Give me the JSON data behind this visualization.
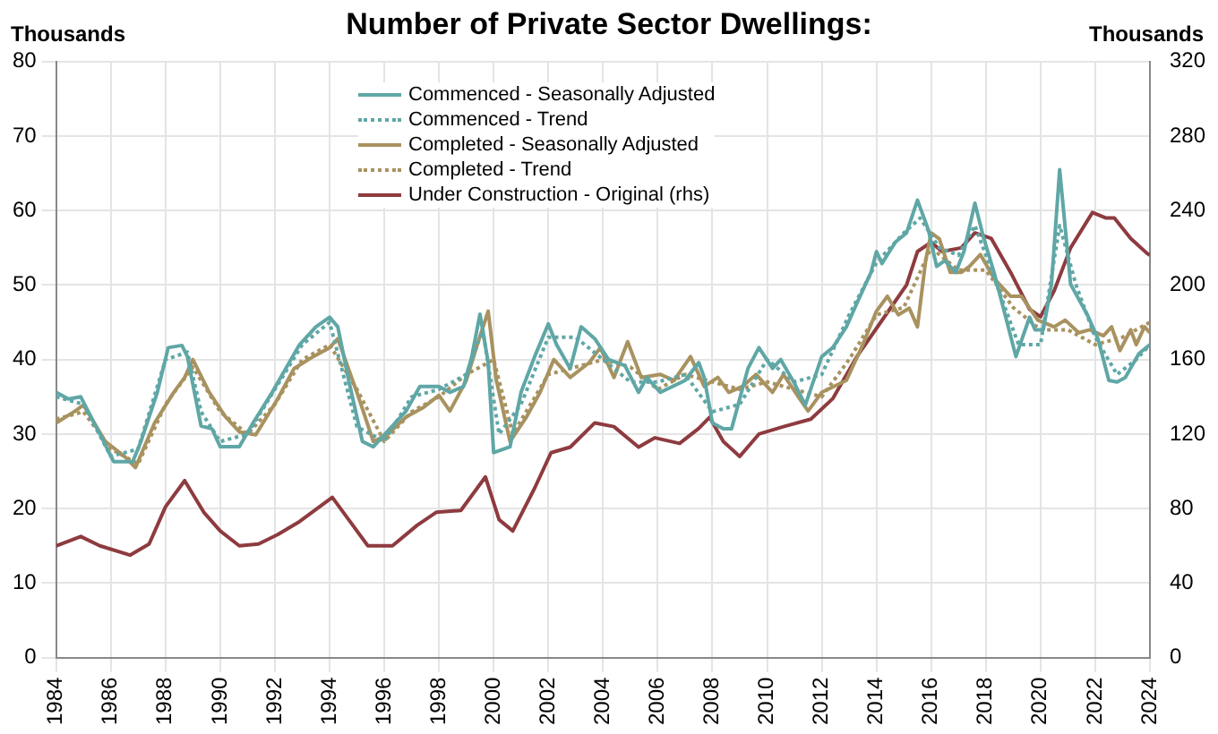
{
  "chart_data": {
    "type": "line",
    "title": "Number of Private Sector Dwellings:",
    "ylabel": "Thousands",
    "y2label": "Thousands",
    "xlim": [
      1984,
      2024
    ],
    "xticks": [
      1984,
      1986,
      1988,
      1990,
      1992,
      1994,
      1996,
      1998,
      2000,
      2002,
      2004,
      2006,
      2008,
      2010,
      2012,
      2014,
      2016,
      2018,
      2020,
      2022,
      2024
    ],
    "ylim": [
      0,
      80
    ],
    "yticks": [
      0,
      10,
      20,
      30,
      40,
      50,
      60,
      70,
      80
    ],
    "y2lim": [
      0,
      320
    ],
    "y2ticks": [
      0,
      40,
      80,
      120,
      160,
      200,
      240,
      280,
      320
    ],
    "grid": true,
    "legend": "top",
    "marker": "none",
    "series": [
      {
        "name": "Commenced - Seasonally Adjusted",
        "type": "line",
        "color": "#5fa7a6",
        "line_style": "solid",
        "x": [
          1984,
          1984.45,
          1984.9,
          1985.6,
          1986.1,
          1986.8,
          1987.1,
          1987.7,
          1988.1,
          1988.6,
          1988.8,
          1989.3,
          1989.7,
          1990,
          1990.7,
          1991.2,
          1991.9,
          1992.9,
          1993.5,
          1994,
          1994.3,
          1994.7,
          1995.2,
          1995.6,
          1996.2,
          1996.8,
          1997.3,
          1998,
          1998.4,
          1998.9,
          1999.2,
          1999.5,
          1999.8,
          2000,
          2000.6,
          2001,
          2001.5,
          2002,
          2002.3,
          2002.8,
          2003.2,
          2003.7,
          2004.2,
          2004.8,
          2005.3,
          2005.6,
          2006.1,
          2007,
          2007.5,
          2007.7,
          2008,
          2008.4,
          2008.7,
          2009.3,
          2009.7,
          2010.2,
          2010.5,
          2011,
          2011.4,
          2012,
          2012.4,
          2012.9,
          2013.3,
          2013.8,
          2014,
          2014.2,
          2014.7,
          2015.1,
          2015.5,
          2015.9,
          2016.2,
          2016.5,
          2016.9,
          2017.2,
          2017.6,
          2017.9,
          2018.3,
          2018.7,
          2019.1,
          2019.6,
          2019.8,
          2020.1,
          2020.4,
          2020.7,
          2021.1,
          2021.7,
          2022.1,
          2022.5,
          2022.8,
          2023.1,
          2023.6,
          2024
        ],
        "values": [
          35.6,
          34.7,
          35,
          30,
          26.3,
          26.3,
          29,
          35.6,
          41.6,
          41.9,
          40.4,
          31.1,
          30.7,
          28.3,
          28.3,
          31.5,
          35.6,
          42,
          44.4,
          45.7,
          44.4,
          37.2,
          29,
          28.3,
          30.7,
          33.1,
          36.4,
          36.4,
          35.6,
          36.4,
          40.4,
          46.1,
          39.6,
          27.5,
          28.3,
          35.6,
          40.4,
          44.8,
          42,
          38.8,
          44.4,
          42.8,
          40,
          39.2,
          35.6,
          37.6,
          35.6,
          37.2,
          39.6,
          37.6,
          31.5,
          30.7,
          30.7,
          38.8,
          41.6,
          38.8,
          40,
          36.8,
          33.9,
          40.4,
          41.6,
          44.4,
          47.7,
          51.7,
          54.5,
          52.9,
          55.8,
          57,
          61.4,
          57.4,
          52.5,
          53.3,
          51.7,
          54.5,
          61,
          56.6,
          51.7,
          46.1,
          40.4,
          45.7,
          44,
          44,
          50.1,
          65.5,
          50.1,
          46.1,
          42.8,
          37.2,
          37,
          37.6,
          40.8,
          42
        ]
      },
      {
        "name": "Commenced - Trend",
        "type": "line",
        "color": "#5fa7a6",
        "line_style": "dotted",
        "x": [
          1984,
          1985,
          1986,
          1987,
          1988,
          1988.8,
          1989.3,
          1990,
          1991,
          1992,
          1993,
          1994,
          1995,
          1996,
          1997,
          1998,
          1999,
          1999.6,
          2000.2,
          2001,
          2002,
          2003,
          2004,
          2005,
          2006,
          2007,
          2008,
          2009,
          2010,
          2011,
          2012,
          2013,
          2014,
          2015,
          2015.6,
          2016.3,
          2017,
          2017.6,
          2018.5,
          2019.2,
          2020,
          2020.7,
          2021.3,
          2022,
          2022.8,
          2023.5,
          2024
        ],
        "values": [
          35,
          34,
          27,
          28,
          40,
          41,
          33,
          29,
          30,
          36,
          42,
          45,
          31,
          29,
          35,
          36,
          38,
          44,
          30,
          34,
          43,
          43,
          40,
          37,
          37,
          38,
          33,
          34,
          40,
          37,
          38,
          46,
          53,
          57,
          59,
          55,
          54,
          58,
          49,
          42,
          42,
          58,
          50,
          43,
          38,
          40,
          42
        ]
      },
      {
        "name": "Completed - Seasonally Adjusted",
        "type": "line",
        "color": "#a8925f",
        "line_style": "solid",
        "x": [
          1984,
          1984.7,
          1985,
          1985.8,
          1986.5,
          1986.9,
          1987.6,
          1988.3,
          1988.7,
          1989,
          1989.6,
          1990.2,
          1990.7,
          1991.3,
          1992.1,
          1992.7,
          1993.4,
          1994,
          1994.3,
          1995,
          1995.6,
          1996.1,
          1996.8,
          1997.4,
          1998,
          1998.4,
          1999,
          1999.4,
          1999.8,
          2000.1,
          2000.6,
          2001.2,
          2001.7,
          2002.2,
          2002.8,
          2003.5,
          2003.9,
          2004.4,
          2004.9,
          2005.4,
          2006.1,
          2006.6,
          2007.2,
          2007.7,
          2008.2,
          2008.6,
          2009.1,
          2009.6,
          2010.2,
          2010.6,
          2011.2,
          2011.5,
          2012,
          2012.9,
          2013.5,
          2014,
          2014.4,
          2014.8,
          2015.2,
          2015.5,
          2015.8,
          2016,
          2016.3,
          2016.7,
          2017.1,
          2017.4,
          2017.8,
          2018.3,
          2018.9,
          2019.3,
          2019.9,
          2020.5,
          2020.9,
          2021.4,
          2021.8,
          2022.3,
          2022.6,
          2022.9,
          2023.3,
          2023.5,
          2023.8,
          2024
        ],
        "values": [
          31.5,
          33.1,
          33.9,
          29,
          27,
          25.5,
          31.5,
          35.6,
          37.6,
          40,
          35.6,
          32.3,
          30.3,
          29.9,
          34.7,
          38.8,
          40.4,
          41.6,
          42.8,
          35.6,
          29,
          29.9,
          32.3,
          33.5,
          35.2,
          33.1,
          37.2,
          42,
          46.5,
          37.2,
          29,
          32.3,
          35.6,
          40,
          37.6,
          39.6,
          41.6,
          37.6,
          42.4,
          37.6,
          38,
          37.2,
          40.4,
          36.4,
          37.6,
          35.6,
          36.4,
          38,
          35.6,
          38,
          34.7,
          33.1,
          35.6,
          37.2,
          42,
          46.5,
          48.5,
          46,
          46.9,
          44.4,
          53.3,
          57,
          56.2,
          51.7,
          51.7,
          52.5,
          54.1,
          50.9,
          48.5,
          48.5,
          45.3,
          44.4,
          45.3,
          43.6,
          44,
          43.2,
          44.4,
          41.2,
          44,
          42,
          44.4,
          43.6
        ]
      },
      {
        "name": "Completed - Trend",
        "type": "line",
        "color": "#a8925f",
        "line_style": "dotted",
        "x": [
          1984,
          1985,
          1986,
          1987,
          1988,
          1989,
          1990,
          1991,
          1992,
          1993,
          1994,
          1995,
          1996,
          1997,
          1998,
          1999,
          2000,
          2000.7,
          2002,
          2003,
          2004,
          2005,
          2006,
          2007,
          2008,
          2009,
          2010,
          2011,
          2012,
          2013,
          2014,
          2015,
          2016,
          2017,
          2018,
          2019,
          2020,
          2021,
          2022,
          2023,
          2024
        ],
        "values": [
          32,
          33,
          28,
          26,
          34,
          39,
          33,
          30,
          34,
          40,
          42,
          36,
          29,
          33,
          35,
          38,
          40,
          30,
          38,
          39,
          40,
          39,
          36,
          38,
          37,
          36,
          37,
          36,
          35,
          40,
          46,
          47,
          55,
          52,
          52,
          47,
          44,
          44,
          42,
          43,
          45
        ]
      },
      {
        "name": "Under Construction - Original (rhs)",
        "type": "line",
        "color": "#8e3b3f",
        "line_style": "solid",
        "axis": "y2",
        "x": [
          1984,
          1984.9,
          1985.6,
          1986.7,
          1987.4,
          1988,
          1988.7,
          1989.4,
          1990,
          1990.7,
          1991.4,
          1992.1,
          1992.9,
          1994.1,
          1994.7,
          1995.4,
          1996.3,
          1997.2,
          1997.9,
          1998.8,
          1999.7,
          2000.2,
          2000.7,
          2001.5,
          2002.1,
          2002.8,
          2003.7,
          2004.4,
          2005.3,
          2005.9,
          2006.8,
          2007.5,
          2007.9,
          2008.4,
          2009,
          2009.7,
          2010.6,
          2011.6,
          2012.4,
          2013.3,
          2014.2,
          2015.1,
          2015.5,
          2016,
          2016.4,
          2017.1,
          2017.6,
          2018.2,
          2018.9,
          2019.6,
          2020,
          2020.5,
          2021.1,
          2021.9,
          2022.4,
          2022.7,
          2023.3,
          2023.9,
          2024
        ],
        "values": [
          60,
          65,
          60,
          55,
          61,
          81,
          95,
          78,
          68,
          60,
          61,
          66,
          73,
          86,
          74,
          60,
          60,
          71,
          78,
          79,
          97,
          74,
          68,
          91,
          110,
          113,
          126,
          124,
          113,
          118,
          115,
          123,
          129,
          116,
          108,
          120,
          124,
          128,
          139,
          162,
          181,
          200,
          218,
          223,
          218,
          220,
          228,
          225,
          207,
          187,
          183,
          197,
          220,
          239,
          236,
          236,
          225,
          217,
          216
        ]
      }
    ]
  }
}
